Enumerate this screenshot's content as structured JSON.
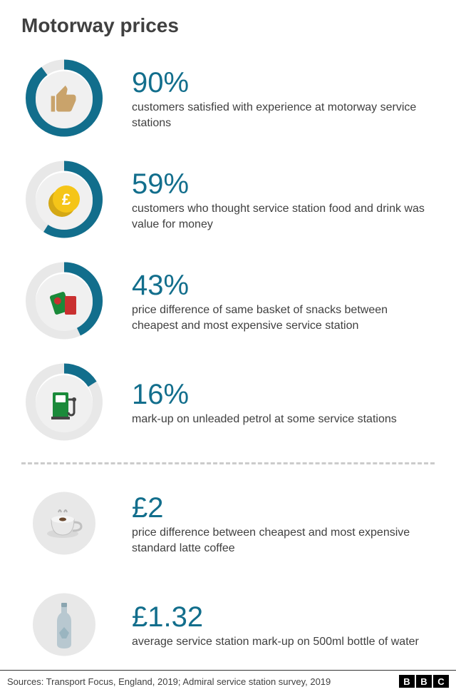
{
  "title": "Motorway prices",
  "ring": {
    "color": "#126e8c",
    "bg_color": "#e8e8e8",
    "outer_radius": 54,
    "inner_radius": 40,
    "inner_bg": "#f0f0f0"
  },
  "stat_value_color": "#126e8c",
  "stats": [
    {
      "percent": 90,
      "value": "90%",
      "desc": "customers satisfied with experience at motorway service stations",
      "icon": "thumb",
      "icon_color": "#c9a36b"
    },
    {
      "percent": 59,
      "value": "59%",
      "desc": "customers who thought service station food and drink was value for money",
      "icon": "pound",
      "icon_color": "#f5c518"
    },
    {
      "percent": 43,
      "value": "43%",
      "desc": "price difference of same basket of snacks between cheapest and most expensive service station",
      "icon": "snacks",
      "icon_color": "#1a8a3a"
    },
    {
      "percent": 16,
      "value": "16%",
      "desc": "mark-up on unleaded petrol at some service stations",
      "icon": "pump",
      "icon_color": "#1a8a3a"
    }
  ],
  "prices": [
    {
      "value": "£2",
      "desc": "price difference between cheapest and most expensive standard latte coffee",
      "icon": "coffee",
      "icon_color": "#d0d0d0"
    },
    {
      "value": "£1.32",
      "desc": "average service station mark-up on 500ml bottle of water",
      "icon": "bottle",
      "icon_color": "#b8c8d0"
    }
  ],
  "sources": "Sources: Transport Focus, England, 2019;  Admiral service station survey, 2019",
  "bbc": [
    "B",
    "B",
    "C"
  ]
}
